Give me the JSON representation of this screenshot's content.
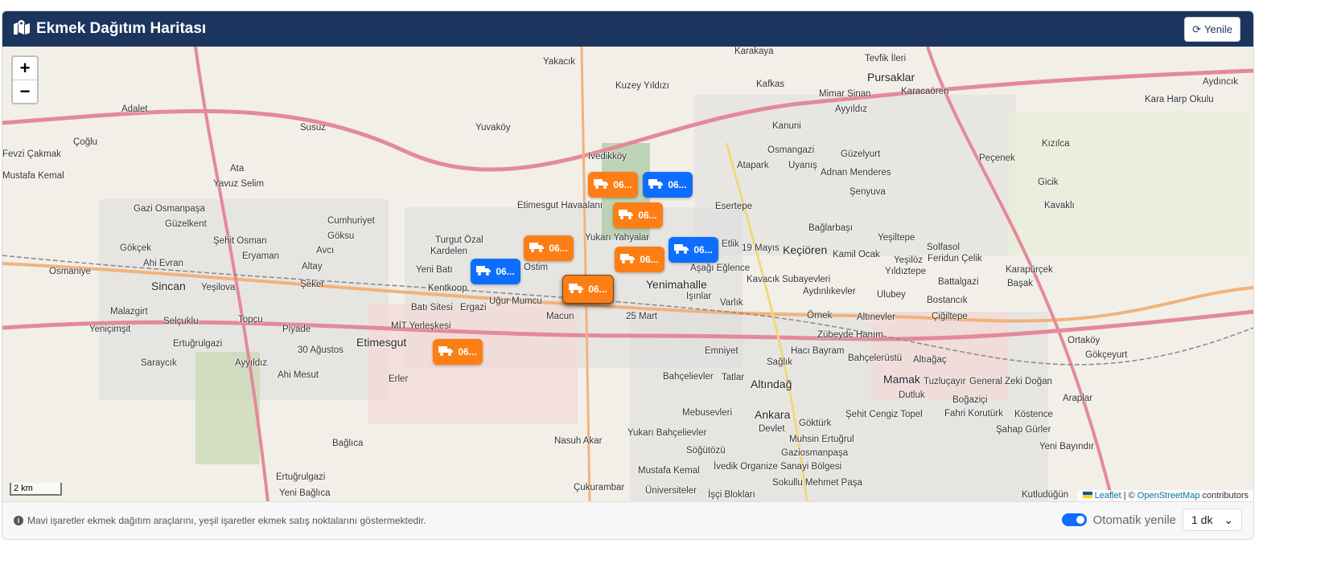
{
  "header": {
    "title": "Ekmek Dağıtım Haritası",
    "icon": "map-marked-icon",
    "refresh_label": "Yenile",
    "refresh_icon": "sync-icon"
  },
  "map": {
    "zoom_in": "+",
    "zoom_out": "−",
    "scale": "2 km",
    "attribution": {
      "leaflet": "Leaflet",
      "sep": "| ©",
      "osm": "OpenStreetMap",
      "contributors": "contributors"
    },
    "labels": [
      "Sincan",
      "Etimesgut",
      "Yenimahalle",
      "Keçiören",
      "Ankara",
      "Altındağ",
      "Mamak",
      "Pursaklar",
      "Yakacık",
      "Kuzey Yıldızı",
      "Yuvaköy",
      "Ivedikköy",
      "Turgut Özal",
      "Ostim",
      "Yukarı Yahyalar",
      "Batı Sitesi",
      "Ergazi",
      "Uğur Mumcu",
      "Macun",
      "25 Mart",
      "Emniyet",
      "Varlık",
      "Etlik",
      "19 Mayıs",
      "Esertepe",
      "Bağlarbaşı",
      "Yeşiltepe",
      "Kamil Ocak",
      "Aşağı Eğlence",
      "Işınlar",
      "Zübeyde Hanım",
      "Hacı Bayram",
      "Bahçelievler",
      "Sağlık",
      "Devlet",
      "Gökçek",
      "Gazi Osmanpaşa",
      "Güzelkent",
      "Şehit Osman",
      "Eryaman",
      "Ahi Evran",
      "Osmaniye",
      "Yeşilova",
      "Malazgirt",
      "Selçuklu",
      "Topçu",
      "Piyade",
      "30 Ağustos",
      "Ahi Mesut",
      "Saraycık",
      "Ayyıldız",
      "Yeniçimşit",
      "Ertuğrulgazi",
      "Erler",
      "Kentkoop",
      "Yeni Batı",
      "Kardelen",
      "Şeker",
      "Altay",
      "Avcı",
      "Fevzi Çakmak",
      "Mustafa Kemal",
      "Çoğlu",
      "Adalet",
      "Ata",
      "Yavuz Selim",
      "Cumhuriyet",
      "Göksu",
      "Susuz",
      "Kanuni",
      "Osmangazi",
      "Atapark",
      "Uyanış",
      "Güzelyurt",
      "Adnan Menderes",
      "Şenyuva",
      "Ayyıldız",
      "Mimar Sinan",
      "Tevfik İleri",
      "Karacaören",
      "Kafkas",
      "Karakaya",
      "Yeşilöz",
      "Solfasol",
      "Yıldıztepe",
      "Feridun Çelik",
      "Karapürçek",
      "Başak",
      "Battalgazi",
      "Bostancık",
      "Ulubey",
      "Çiğiltepe",
      "Altınevler",
      " Örnek",
      "Aydınlıkevler",
      "Kavacık Subayevleri",
      "Bahçelerüstü",
      "Altıağaç",
      "Tuzluçayır",
      "General Zeki Doğan",
      "Dutluk",
      "Boğaziçi",
      "Fahri Korutürk",
      "Şahap Gürler",
      "Yeni Bayındır",
      "Kutludüğün",
      "Köstence",
      "Araplar",
      "Ortaköy",
      "Gökçeyurt",
      "Kızılca",
      "Peçenek",
      "Gicik",
      "Kavaklı",
      "Tatlar",
      "Mebusevleri",
      "Yukarı Bahçelievler",
      "Söğütözü",
      "Nasuh Akar",
      "Mustafa Kemal",
      "Çukurambar",
      "Üniversiteler",
      "İşçi Blokları",
      "Sokullu Mehmet Paşa",
      "Gaziosmanpaşa",
      "Muhsin Ertuğrul",
      "Göktürk",
      "Şehit Cengiz Topel",
      "Ertuğrulgazi",
      "Yeni Bağlıca",
      "Bağlıca",
      "MİT Yerleşkesi",
      "Etimesgut Havaalanı",
      "İvedik Organize Sanayi Bölgesi",
      "Kara Harp Okulu",
      "Aydıncık"
    ],
    "markers": [
      {
        "color": "orange",
        "label": "06...",
        "icon": "truck-icon"
      },
      {
        "color": "blue",
        "label": "06...",
        "icon": "truck-icon"
      },
      {
        "color": "orange",
        "label": "06...",
        "icon": "truck-icon"
      },
      {
        "color": "orange",
        "label": "06...",
        "icon": "truck-icon"
      },
      {
        "color": "blue",
        "label": "06...",
        "icon": "truck-icon"
      },
      {
        "color": "blue",
        "label": "06...",
        "icon": "truck-icon"
      },
      {
        "color": "orange",
        "label": "06...",
        "icon": "truck-icon"
      },
      {
        "color": "orange",
        "label": "06...",
        "icon": "truck-icon",
        "active": true
      },
      {
        "color": "orange",
        "label": "06...",
        "icon": "truck-icon"
      }
    ]
  },
  "footer": {
    "info_icon": "info-circle-icon",
    "note": "Mavi işaretler ekmek dağıtım araçlarını, yeşil işaretler ekmek satış noktalarını göstermektedir.",
    "auto_refresh_label": "Otomatik yenile",
    "auto_refresh_on": true,
    "interval": "1 dk"
  },
  "colors": {
    "header": "#1c355e",
    "orange": "#fd7e14",
    "blue": "#0d6efd"
  }
}
